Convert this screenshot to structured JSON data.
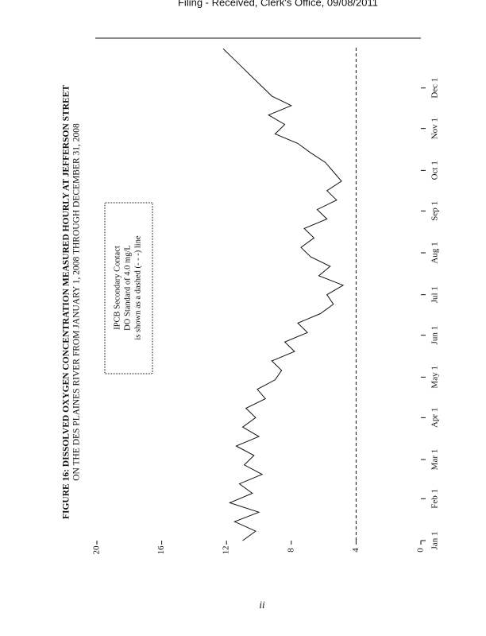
{
  "header": "Filing - Received, Clerk's Office, 09/08/2011",
  "footer": "ii",
  "chart_data": {
    "type": "line",
    "title": "FIGURE 16: DISSOLVED OXYGEN CONCENTRATION MEASURED HOURLY AT JEFFERSON STREET",
    "subtitle": "ON THE DES PLAINES RIVER FROM JANUARY 1, 2008 THROUGH DECEMBER 31, 2008",
    "legend": [
      "IPCB Secondary Contact",
      "DO Standard of 4.0 mg/L",
      "is shown as a dashed (- - -) line"
    ],
    "reference_line": 4,
    "x": [
      0,
      7,
      14,
      21,
      28,
      35,
      42,
      49,
      56,
      63,
      70,
      77,
      84,
      91,
      98,
      105,
      112,
      119,
      126,
      133,
      140,
      147,
      154,
      161,
      168,
      175,
      182,
      189,
      196,
      203,
      210,
      217,
      224,
      231,
      238,
      245,
      252,
      259,
      266,
      273,
      280,
      287,
      294,
      301,
      308,
      315,
      322,
      329,
      336,
      343,
      350,
      357,
      364
    ],
    "series": [
      {
        "name": "DO",
        "color": "#111111",
        "values": [
          11.0,
          10.2,
          11.5,
          10.0,
          11.8,
          10.4,
          11.2,
          9.8,
          10.9,
          10.3,
          11.4,
          10.0,
          11.0,
          10.2,
          10.8,
          9.6,
          10.1,
          9.0,
          8.6,
          9.2,
          7.8,
          8.4,
          7.0,
          7.6,
          6.2,
          5.4,
          5.8,
          4.8,
          6.3,
          5.6,
          6.8,
          7.4,
          6.6,
          7.2,
          5.8,
          6.4,
          5.2,
          5.8,
          4.9,
          5.4,
          5.9,
          6.8,
          7.6,
          9.0,
          8.4,
          9.4,
          8.0,
          9.2,
          9.8,
          10.4,
          11.0,
          11.6,
          12.2
        ]
      }
    ],
    "xlim": [
      0,
      366
    ],
    "xticks": [
      {
        "value": 0,
        "label": "Jan 1"
      },
      {
        "value": 31,
        "label": "Feb 1"
      },
      {
        "value": 60,
        "label": "Mar 1"
      },
      {
        "value": 91,
        "label": "Apr 1"
      },
      {
        "value": 121,
        "label": "May 1"
      },
      {
        "value": 152,
        "label": "Jun 1"
      },
      {
        "value": 182,
        "label": "Jul 1"
      },
      {
        "value": 213,
        "label": "Aug 1"
      },
      {
        "value": 244,
        "label": "Sep 1"
      },
      {
        "value": 274,
        "label": "Oct 1"
      },
      {
        "value": 305,
        "label": "Nov 1"
      },
      {
        "value": 335,
        "label": "Dec 1"
      }
    ],
    "ylim": [
      0,
      20
    ],
    "yticks": [
      0,
      4,
      8,
      12,
      16,
      20
    ]
  }
}
